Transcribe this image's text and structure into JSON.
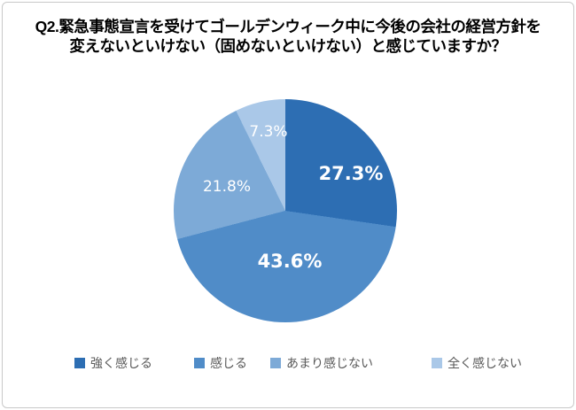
{
  "title": {
    "line1": "Q2.緊急事態宣言を受けてゴールデンウィーク中に今後の会社の経営方針を",
    "line2": "変えないといけない（固めないといけない）と感じていますか？"
  },
  "chart_data": {
    "type": "pie",
    "title": "Q2.緊急事態宣言を受けてゴールデンウィーク中に今後の会社の経営方針を変えないといけない（固めないといけない）と感じていますか？",
    "categories": [
      "強く感じる",
      "感じる",
      "あまり感じない",
      "全く感じない"
    ],
    "values": [
      27.3,
      43.6,
      21.8,
      7.3
    ],
    "labels": [
      "27.3%",
      "43.6%",
      "21.8%",
      "7.3%"
    ],
    "colors": [
      "#2d6eb3",
      "#508cc8",
      "#7daad7",
      "#aac8e8"
    ],
    "start_angle_deg": 0,
    "direction": "clockwise",
    "legend_position": "bottom",
    "label_color": "#ffffff",
    "title_color": "#000000",
    "legend_text_color": "#595959",
    "frame_border_color": "#c9c9c9",
    "background_color": "#ffffff"
  },
  "legend": {
    "items": [
      {
        "label": "強く感じる"
      },
      {
        "label": "感じる"
      },
      {
        "label": "あまり感じない"
      },
      {
        "label": "全く感じない"
      }
    ]
  }
}
